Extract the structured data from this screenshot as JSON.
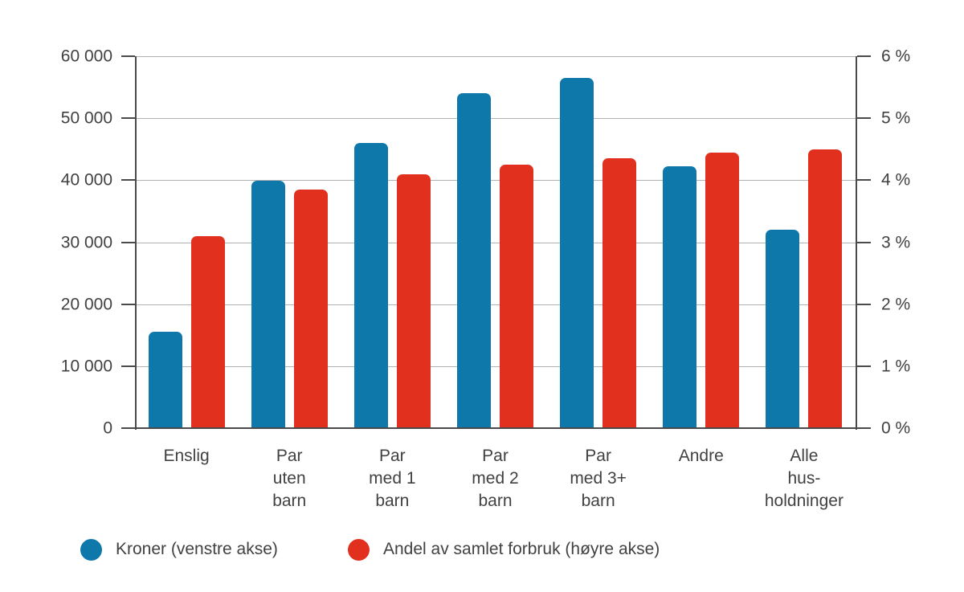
{
  "chart_data": {
    "type": "bar",
    "categories": [
      "Enslig",
      "Par uten barn",
      "Par med 1 barn",
      "Par med 2 barn",
      "Par med 3+ barn",
      "Andre",
      "Alle husholdninger"
    ],
    "category_display_labels": [
      "Enslig",
      "Par\nuten\nbarn",
      "Par\nmed 1\nbarn",
      "Par\nmed 2\nbarn",
      "Par\nmed 3+\nbarn",
      "Andre",
      "Alle\nhus-\nholdninger"
    ],
    "series": [
      {
        "name": "Kroner (venstre akse)",
        "axis": "left",
        "color": "#0f78ab",
        "values": [
          15500,
          39900,
          46000,
          54000,
          56500,
          42300,
          32000
        ]
      },
      {
        "name": "Andel av samlet forbruk (høyre akse)",
        "axis": "right",
        "color": "#e1301e",
        "values": [
          3.1,
          3.85,
          4.1,
          4.25,
          4.35,
          4.45,
          4.5
        ]
      }
    ],
    "left_axis": {
      "min": 0,
      "max": 60000,
      "tick_labels": [
        "60 000",
        "50 000",
        "40 000",
        "30 000",
        "20 000",
        "10 000",
        "0"
      ]
    },
    "right_axis": {
      "min": 0,
      "max": 6,
      "tick_labels": [
        "6 %",
        "5 %",
        "4 %",
        "3 %",
        "2 %",
        "1 %",
        "0 %"
      ]
    },
    "grid": true,
    "legend_position": "bottom",
    "title": ""
  },
  "legend": {
    "items": [
      {
        "label": "Kroner (venstre akse)",
        "color": "#0f78ab"
      },
      {
        "label": "Andel av samlet forbruk (høyre akse)",
        "color": "#e1301e"
      }
    ]
  },
  "colors": {
    "bar_blue": "#0f78ab",
    "bar_red": "#e1301e",
    "axis": "#4a4a4a",
    "gridline": "#b2b2b2",
    "text": "#414141",
    "background": "#ffffff"
  }
}
